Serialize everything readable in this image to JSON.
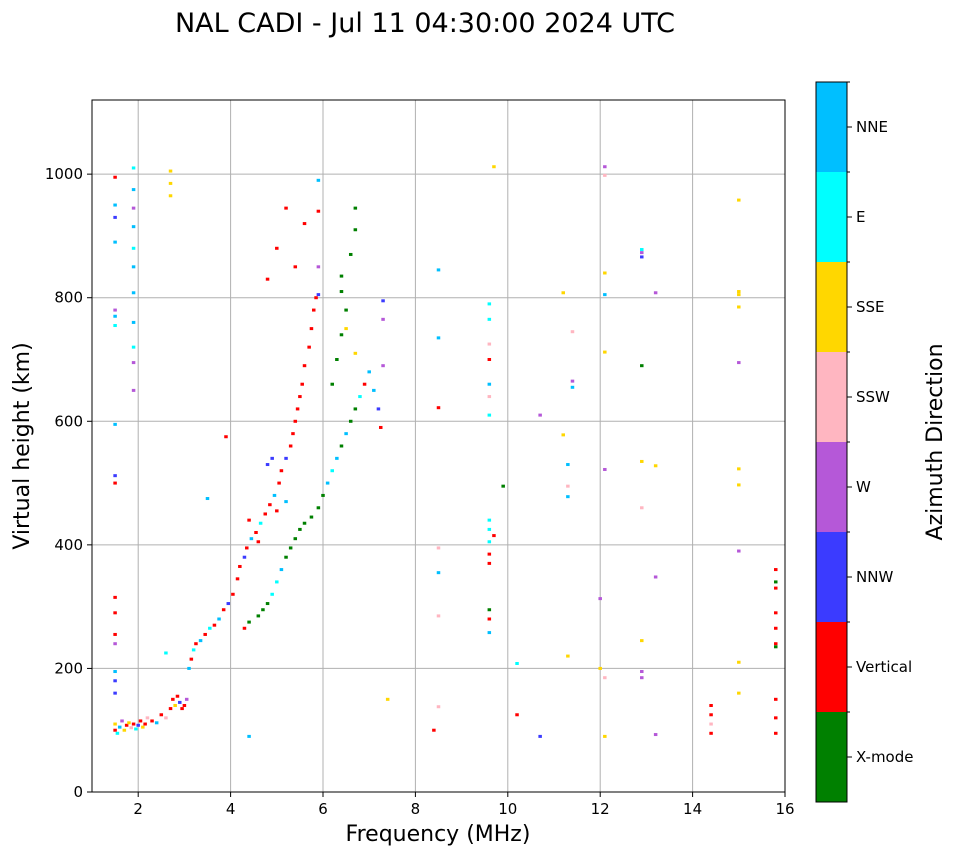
{
  "chart_data": {
    "type": "scatter",
    "title": "NAL CADI - Jul 11 04:30:00 2024 UTC",
    "xlabel": "Frequency (MHz)",
    "ylabel": "Virtual height (km)",
    "xlim": [
      1,
      16
    ],
    "ylim": [
      0,
      1120
    ],
    "grid": true,
    "x_ticks": [
      2,
      4,
      6,
      8,
      10,
      12,
      14,
      16
    ],
    "y_ticks": [
      0,
      200,
      400,
      600,
      800,
      1000
    ],
    "colorbar": {
      "label": "Azimuth Direction",
      "categories": [
        {
          "name": "X-mode",
          "color": "#008000"
        },
        {
          "name": "Vertical",
          "color": "#ff0000"
        },
        {
          "name": "NNW",
          "color": "#3b3bff"
        },
        {
          "name": "W",
          "color": "#b558d8"
        },
        {
          "name": "SSW",
          "color": "#ffb6c1"
        },
        {
          "name": "SSE",
          "color": "#ffd700"
        },
        {
          "name": "E",
          "color": "#00ffff"
        },
        {
          "name": "NNE",
          "color": "#00bfff"
        }
      ]
    },
    "points": [
      [
        1.5,
        100,
        "Vertical"
      ],
      [
        1.5,
        110,
        "SSE"
      ],
      [
        1.55,
        95,
        "E"
      ],
      [
        1.6,
        105,
        "NNE"
      ],
      [
        1.65,
        115,
        "W"
      ],
      [
        1.7,
        100,
        "SSE"
      ],
      [
        1.75,
        108,
        "Vertical"
      ],
      [
        1.8,
        112,
        "SSE"
      ],
      [
        1.85,
        104,
        "SSW"
      ],
      [
        1.9,
        110,
        "Vertical"
      ],
      [
        1.95,
        102,
        "E"
      ],
      [
        2.0,
        108,
        "NNW"
      ],
      [
        2.05,
        115,
        "Vertical"
      ],
      [
        2.1,
        105,
        "SSE"
      ],
      [
        2.15,
        110,
        "Vertical"
      ],
      [
        2.2,
        120,
        "SSW"
      ],
      [
        2.3,
        115,
        "Vertical"
      ],
      [
        2.4,
        112,
        "NNE"
      ],
      [
        2.5,
        125,
        "Vertical"
      ],
      [
        2.6,
        120,
        "SSW"
      ],
      [
        2.7,
        135,
        "Vertical"
      ],
      [
        2.75,
        150,
        "Vertical"
      ],
      [
        2.8,
        140,
        "SSE"
      ],
      [
        2.85,
        155,
        "Vertical"
      ],
      [
        2.9,
        145,
        "NNW"
      ],
      [
        2.95,
        135,
        "Vertical"
      ],
      [
        3.0,
        140,
        "Vertical"
      ],
      [
        3.05,
        150,
        "W"
      ],
      [
        1.5,
        160,
        "NNW"
      ],
      [
        1.5,
        180,
        "NNW"
      ],
      [
        1.5,
        195,
        "NNE"
      ],
      [
        1.5,
        240,
        "W"
      ],
      [
        1.5,
        255,
        "Vertical"
      ],
      [
        1.5,
        290,
        "Vertical"
      ],
      [
        1.5,
        315,
        "Vertical"
      ],
      [
        1.5,
        500,
        "Vertical"
      ],
      [
        1.5,
        512,
        "NNW"
      ],
      [
        1.5,
        595,
        "NNE"
      ],
      [
        1.5,
        755,
        "E"
      ],
      [
        1.5,
        770,
        "NNE"
      ],
      [
        1.5,
        780,
        "W"
      ],
      [
        1.5,
        890,
        "NNE"
      ],
      [
        1.5,
        930,
        "NNW"
      ],
      [
        1.5,
        950,
        "NNE"
      ],
      [
        1.5,
        995,
        "Vertical"
      ],
      [
        1.9,
        650,
        "W"
      ],
      [
        1.9,
        695,
        "W"
      ],
      [
        1.9,
        720,
        "E"
      ],
      [
        1.9,
        760,
        "NNE"
      ],
      [
        1.9,
        808,
        "NNE"
      ],
      [
        1.9,
        850,
        "NNE"
      ],
      [
        1.9,
        880,
        "E"
      ],
      [
        1.9,
        915,
        "NNE"
      ],
      [
        1.9,
        945,
        "W"
      ],
      [
        1.9,
        975,
        "NNE"
      ],
      [
        1.9,
        1010,
        "E"
      ],
      [
        2.7,
        965,
        "SSE"
      ],
      [
        2.7,
        985,
        "SSE"
      ],
      [
        2.7,
        1005,
        "SSE"
      ],
      [
        2.6,
        225,
        "E"
      ],
      [
        3.5,
        475,
        "NNE"
      ],
      [
        4.4,
        90,
        "NNE"
      ],
      [
        3.9,
        575,
        "Vertical"
      ],
      [
        3.1,
        200,
        "NNE"
      ],
      [
        3.15,
        215,
        "Vertical"
      ],
      [
        3.2,
        230,
        "E"
      ],
      [
        3.25,
        240,
        "Vertical"
      ],
      [
        3.35,
        245,
        "NNE"
      ],
      [
        3.45,
        255,
        "Vertical"
      ],
      [
        3.55,
        265,
        "E"
      ],
      [
        3.65,
        270,
        "Vertical"
      ],
      [
        3.75,
        280,
        "NNE"
      ],
      [
        3.85,
        295,
        "Vertical"
      ],
      [
        3.95,
        305,
        "NNW"
      ],
      [
        4.05,
        320,
        "Vertical"
      ],
      [
        4.15,
        345,
        "Vertical"
      ],
      [
        4.2,
        365,
        "Vertical"
      ],
      [
        4.3,
        380,
        "NNW"
      ],
      [
        4.35,
        395,
        "Vertical"
      ],
      [
        4.45,
        410,
        "NNE"
      ],
      [
        4.55,
        420,
        "Vertical"
      ],
      [
        4.65,
        435,
        "E"
      ],
      [
        4.75,
        450,
        "Vertical"
      ],
      [
        4.85,
        465,
        "Vertical"
      ],
      [
        4.95,
        480,
        "NNE"
      ],
      [
        5.05,
        500,
        "Vertical"
      ],
      [
        5.1,
        520,
        "Vertical"
      ],
      [
        5.2,
        540,
        "NNW"
      ],
      [
        5.3,
        560,
        "Vertical"
      ],
      [
        5.35,
        580,
        "Vertical"
      ],
      [
        5.4,
        600,
        "Vertical"
      ],
      [
        5.45,
        620,
        "Vertical"
      ],
      [
        5.5,
        640,
        "Vertical"
      ],
      [
        5.55,
        660,
        "Vertical"
      ],
      [
        5.6,
        690,
        "Vertical"
      ],
      [
        5.7,
        720,
        "Vertical"
      ],
      [
        5.75,
        750,
        "Vertical"
      ],
      [
        5.8,
        780,
        "Vertical"
      ],
      [
        5.85,
        800,
        "Vertical"
      ],
      [
        4.9,
        540,
        "NNW"
      ],
      [
        4.8,
        530,
        "NNW"
      ],
      [
        4.4,
        440,
        "Vertical"
      ],
      [
        4.6,
        405,
        "Vertical"
      ],
      [
        5.0,
        455,
        "Vertical"
      ],
      [
        5.2,
        470,
        "NNE"
      ],
      [
        4.8,
        830,
        "Vertical"
      ],
      [
        5.0,
        880,
        "Vertical"
      ],
      [
        5.2,
        945,
        "Vertical"
      ],
      [
        5.4,
        850,
        "Vertical"
      ],
      [
        5.6,
        920,
        "Vertical"
      ],
      [
        5.9,
        940,
        "Vertical"
      ],
      [
        5.9,
        850,
        "W"
      ],
      [
        5.9,
        805,
        "NNW"
      ],
      [
        5.9,
        990,
        "NNE"
      ],
      [
        4.3,
        265,
        "Vertical"
      ],
      [
        4.4,
        275,
        "X-mode"
      ],
      [
        4.6,
        285,
        "X-mode"
      ],
      [
        4.7,
        295,
        "X-mode"
      ],
      [
        4.8,
        305,
        "X-mode"
      ],
      [
        4.9,
        320,
        "E"
      ],
      [
        5.0,
        340,
        "E"
      ],
      [
        5.1,
        360,
        "NNE"
      ],
      [
        5.2,
        380,
        "X-mode"
      ],
      [
        5.3,
        395,
        "X-mode"
      ],
      [
        5.4,
        410,
        "X-mode"
      ],
      [
        5.5,
        425,
        "X-mode"
      ],
      [
        5.6,
        435,
        "X-mode"
      ],
      [
        5.75,
        445,
        "X-mode"
      ],
      [
        5.9,
        460,
        "X-mode"
      ],
      [
        6.0,
        480,
        "X-mode"
      ],
      [
        6.1,
        500,
        "NNE"
      ],
      [
        6.2,
        520,
        "E"
      ],
      [
        6.3,
        540,
        "NNE"
      ],
      [
        6.4,
        560,
        "X-mode"
      ],
      [
        6.5,
        580,
        "NNE"
      ],
      [
        6.6,
        600,
        "X-mode"
      ],
      [
        6.7,
        620,
        "X-mode"
      ],
      [
        6.8,
        640,
        "E"
      ],
      [
        6.9,
        660,
        "Vertical"
      ],
      [
        7.0,
        680,
        "NNE"
      ],
      [
        7.1,
        650,
        "NNE"
      ],
      [
        7.2,
        620,
        "NNW"
      ],
      [
        7.25,
        590,
        "Vertical"
      ],
      [
        7.3,
        690,
        "W"
      ],
      [
        6.2,
        660,
        "X-mode"
      ],
      [
        6.3,
        700,
        "X-mode"
      ],
      [
        6.4,
        740,
        "X-mode"
      ],
      [
        6.5,
        780,
        "X-mode"
      ],
      [
        6.4,
        810,
        "X-mode"
      ],
      [
        6.4,
        835,
        "X-mode"
      ],
      [
        6.6,
        870,
        "X-mode"
      ],
      [
        6.7,
        910,
        "X-mode"
      ],
      [
        6.7,
        945,
        "X-mode"
      ],
      [
        6.5,
        750,
        "SSE"
      ],
      [
        6.7,
        710,
        "SSE"
      ],
      [
        7.3,
        765,
        "W"
      ],
      [
        7.3,
        795,
        "NNW"
      ],
      [
        7.4,
        150,
        "SSE"
      ],
      [
        8.4,
        100,
        "Vertical"
      ],
      [
        8.5,
        138,
        "SSW"
      ],
      [
        8.5,
        285,
        "SSW"
      ],
      [
        8.5,
        355,
        "NNE"
      ],
      [
        8.5,
        395,
        "SSW"
      ],
      [
        8.5,
        622,
        "Vertical"
      ],
      [
        8.5,
        735,
        "NNE"
      ],
      [
        8.5,
        845,
        "NNE"
      ],
      [
        9.6,
        258,
        "NNE"
      ],
      [
        9.6,
        280,
        "Vertical"
      ],
      [
        9.6,
        295,
        "X-mode"
      ],
      [
        9.6,
        370,
        "Vertical"
      ],
      [
        9.6,
        385,
        "Vertical"
      ],
      [
        9.6,
        405,
        "E"
      ],
      [
        9.6,
        425,
        "E"
      ],
      [
        9.6,
        440,
        "E"
      ],
      [
        9.7,
        415,
        "Vertical"
      ],
      [
        9.6,
        610,
        "E"
      ],
      [
        9.6,
        640,
        "SSW"
      ],
      [
        9.6,
        660,
        "NNE"
      ],
      [
        9.6,
        700,
        "Vertical"
      ],
      [
        9.6,
        725,
        "SSW"
      ],
      [
        9.6,
        765,
        "E"
      ],
      [
        9.6,
        790,
        "E"
      ],
      [
        9.7,
        1012,
        "SSE"
      ],
      [
        9.9,
        495,
        "X-mode"
      ],
      [
        10.2,
        208,
        "E"
      ],
      [
        10.2,
        125,
        "Vertical"
      ],
      [
        10.7,
        90,
        "NNW"
      ],
      [
        10.7,
        610,
        "W"
      ],
      [
        11.3,
        220,
        "SSE"
      ],
      [
        11.3,
        478,
        "NNE"
      ],
      [
        11.3,
        495,
        "SSW"
      ],
      [
        11.3,
        530,
        "NNE"
      ],
      [
        11.2,
        578,
        "SSE"
      ],
      [
        11.4,
        655,
        "NNE"
      ],
      [
        11.4,
        665,
        "W"
      ],
      [
        11.4,
        745,
        "SSW"
      ],
      [
        11.2,
        808,
        "SSE"
      ],
      [
        12.0,
        200,
        "SSE"
      ],
      [
        12.1,
        185,
        "SSW"
      ],
      [
        12.1,
        90,
        "SSE"
      ],
      [
        12.0,
        313,
        "W"
      ],
      [
        12.1,
        522,
        "W"
      ],
      [
        12.1,
        712,
        "SSE"
      ],
      [
        12.1,
        805,
        "NNE"
      ],
      [
        12.1,
        840,
        "SSE"
      ],
      [
        12.1,
        998,
        "SSW"
      ],
      [
        12.1,
        1012,
        "W"
      ],
      [
        12.9,
        185,
        "W"
      ],
      [
        12.9,
        195,
        "W"
      ],
      [
        12.9,
        245,
        "SSE"
      ],
      [
        12.9,
        460,
        "SSW"
      ],
      [
        12.9,
        535,
        "SSE"
      ],
      [
        12.9,
        690,
        "X-mode"
      ],
      [
        12.9,
        866,
        "NNW"
      ],
      [
        12.9,
        873,
        "W"
      ],
      [
        12.9,
        878,
        "E"
      ],
      [
        13.2,
        93,
        "W"
      ],
      [
        13.2,
        348,
        "W"
      ],
      [
        13.2,
        528,
        "SSE"
      ],
      [
        13.2,
        808,
        "W"
      ],
      [
        15.0,
        160,
        "SSE"
      ],
      [
        15.0,
        210,
        "SSE"
      ],
      [
        15.0,
        390,
        "W"
      ],
      [
        15.0,
        497,
        "SSE"
      ],
      [
        15.0,
        523,
        "SSE"
      ],
      [
        15.0,
        695,
        "W"
      ],
      [
        15.0,
        785,
        "SSE"
      ],
      [
        15.0,
        805,
        "SSE"
      ],
      [
        15.0,
        810,
        "SSE"
      ],
      [
        15.0,
        958,
        "SSE"
      ],
      [
        14.4,
        95,
        "Vertical"
      ],
      [
        14.4,
        110,
        "SSW"
      ],
      [
        14.4,
        125,
        "Vertical"
      ],
      [
        14.4,
        140,
        "Vertical"
      ],
      [
        15.8,
        95,
        "Vertical"
      ],
      [
        15.8,
        120,
        "Vertical"
      ],
      [
        15.8,
        150,
        "Vertical"
      ],
      [
        15.8,
        240,
        "Vertical"
      ],
      [
        15.8,
        265,
        "Vertical"
      ],
      [
        15.8,
        290,
        "Vertical"
      ],
      [
        15.8,
        330,
        "Vertical"
      ],
      [
        15.8,
        340,
        "X-mode"
      ],
      [
        15.8,
        360,
        "Vertical"
      ],
      [
        15.8,
        235,
        "X-mode"
      ]
    ]
  }
}
